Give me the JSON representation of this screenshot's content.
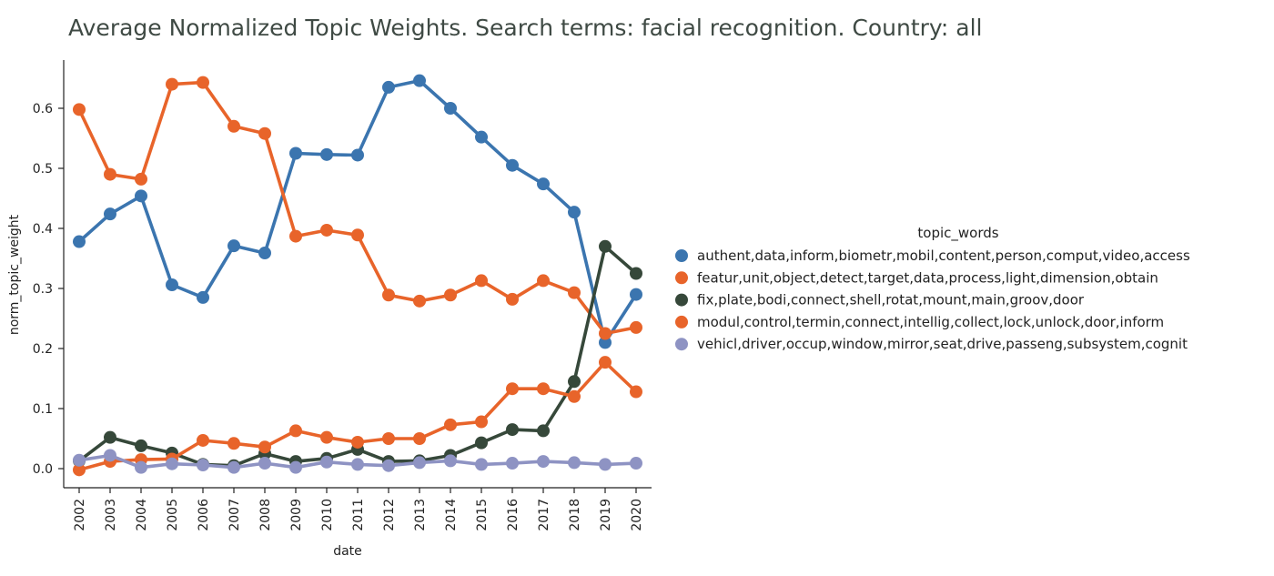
{
  "chart_data": {
    "type": "line",
    "title": "Average Normalized Topic Weights. Search terms: facial recognition. Country: all",
    "xlabel": "date",
    "ylabel": "norm_topic_weight",
    "ylim": [
      -0.03,
      0.68
    ],
    "yticks": [
      0.0,
      0.1,
      0.2,
      0.3,
      0.4,
      0.5,
      0.6
    ],
    "ytick_labels": [
      "0.0",
      "0.1",
      "0.2",
      "0.3",
      "0.4",
      "0.5",
      "0.6"
    ],
    "categories": [
      "2002",
      "2003",
      "2004",
      "2005",
      "2006",
      "2007",
      "2008",
      "2009",
      "2010",
      "2011",
      "2012",
      "2013",
      "2014",
      "2015",
      "2016",
      "2017",
      "2018",
      "2019",
      "2020"
    ],
    "legend_title": "topic_words",
    "legend_position": "right",
    "grid": false,
    "series": [
      {
        "name": "authent,data,inform,biometr,mobil,content,person,comput,video,access",
        "color": "#3b75af",
        "values": [
          0.378,
          0.424,
          0.454,
          0.306,
          0.285,
          0.371,
          0.359,
          0.525,
          0.523,
          0.522,
          0.635,
          0.646,
          0.6,
          0.552,
          0.505,
          0.474,
          0.427,
          0.21,
          0.29
        ]
      },
      {
        "name": "featur,unit,object,detect,target,data,process,light,dimension,obtain",
        "color": "#e8642a",
        "values": [
          0.598,
          0.49,
          0.482,
          0.64,
          0.643,
          0.57,
          0.558,
          0.387,
          0.397,
          0.389,
          0.289,
          0.279,
          0.289,
          0.313,
          0.282,
          0.313,
          0.293,
          0.225,
          0.235
        ]
      },
      {
        "name": "fix,plate,bodi,connect,shell,rotat,mount,main,groov,door",
        "color": "#36483a",
        "values": [
          0.013,
          0.052,
          0.038,
          0.026,
          0.007,
          0.005,
          0.025,
          0.012,
          0.017,
          0.032,
          0.012,
          0.013,
          0.022,
          0.043,
          0.065,
          0.063,
          0.145,
          0.37,
          0.325
        ]
      },
      {
        "name": "modul,control,termin,connect,intellig,collect,lock,unlock,door,inform",
        "color": "#e8642a",
        "values": [
          -0.002,
          0.012,
          0.015,
          0.016,
          0.047,
          0.042,
          0.036,
          0.063,
          0.052,
          0.044,
          0.05,
          0.05,
          0.073,
          0.078,
          0.133,
          0.133,
          0.12,
          0.177,
          0.128
        ]
      },
      {
        "name": "vehicl,driver,occup,window,mirror,seat,drive,passeng,subsystem,cognit",
        "color": "#8e93c3",
        "values": [
          0.014,
          0.022,
          0.002,
          0.008,
          0.006,
          0.002,
          0.009,
          0.002,
          0.011,
          0.007,
          0.005,
          0.01,
          0.013,
          0.007,
          0.009,
          0.012,
          0.01,
          0.007,
          0.009
        ]
      }
    ]
  }
}
